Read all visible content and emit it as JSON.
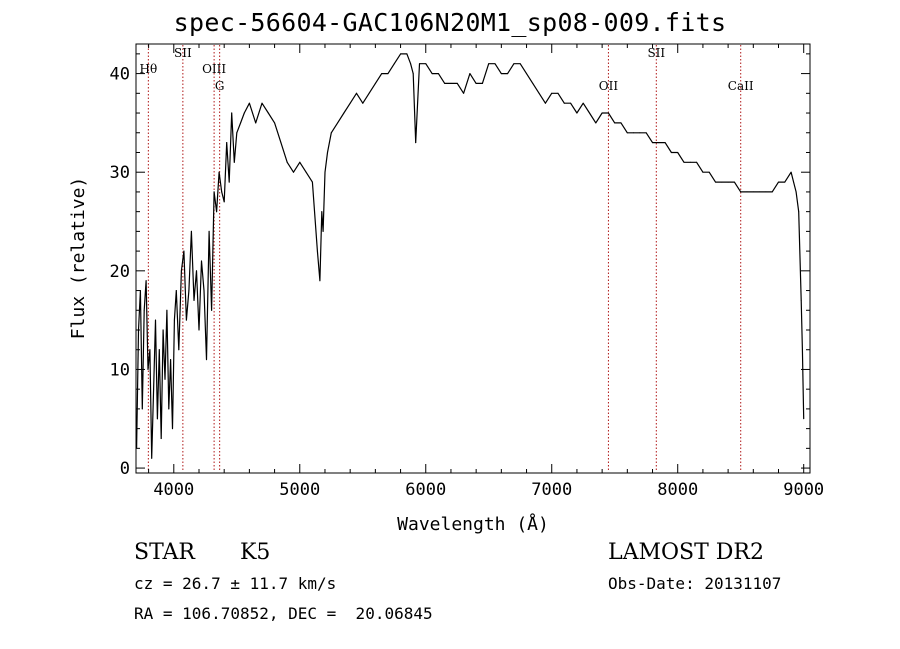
{
  "title": "spec-56604-GAC106N20M1_sp08-009.fits",
  "chart_data": {
    "type": "line",
    "xlabel": "Wavelength (Å)",
    "ylabel": "Flux (relative)",
    "xlim": [
      3700,
      9050
    ],
    "ylim": [
      -0.5,
      43
    ],
    "xticks": [
      4000,
      5000,
      6000,
      7000,
      8000,
      9000
    ],
    "yticks": [
      0,
      10,
      20,
      30,
      40
    ],
    "grid": false,
    "lines": [
      {
        "label": "Hθ",
        "x": 3798
      },
      {
        "label": "SII",
        "x": 4072
      },
      {
        "label": "OIII",
        "x": 4320
      },
      {
        "label": "G",
        "x": 4364
      },
      {
        "label": "OII",
        "x": 7450
      },
      {
        "label": "SII",
        "x": 7830
      },
      {
        "label": "CaII",
        "x": 8500
      }
    ],
    "series": [
      {
        "x": [
          3705,
          3720,
          3735,
          3750,
          3765,
          3780,
          3795,
          3810,
          3825,
          3840,
          3855,
          3870,
          3885,
          3900,
          3915,
          3930,
          3945,
          3960,
          3975,
          3990,
          4005,
          4020,
          4040,
          4060,
          4080,
          4100,
          4120,
          4140,
          4160,
          4180,
          4200,
          4220,
          4240,
          4260,
          4280,
          4300,
          4320,
          4340,
          4360,
          4380,
          4400,
          4420,
          4440,
          4460,
          4480,
          4500,
          4530,
          4560,
          4600,
          4650,
          4700,
          4750,
          4800,
          4850,
          4900,
          4950,
          5000,
          5050,
          5100,
          5140,
          5160,
          5175,
          5185,
          5200,
          5220,
          5250,
          5300,
          5350,
          5400,
          5450,
          5500,
          5550,
          5600,
          5650,
          5700,
          5750,
          5800,
          5850,
          5880,
          5900,
          5920,
          5950,
          6000,
          6050,
          6100,
          6150,
          6200,
          6250,
          6300,
          6350,
          6400,
          6450,
          6500,
          6550,
          6600,
          6650,
          6700,
          6750,
          6800,
          6850,
          6900,
          6950,
          7000,
          7050,
          7100,
          7150,
          7200,
          7250,
          7300,
          7350,
          7400,
          7450,
          7500,
          7550,
          7600,
          7650,
          7700,
          7750,
          7800,
          7850,
          7900,
          7950,
          8000,
          8050,
          8100,
          8150,
          8200,
          8250,
          8300,
          8350,
          8400,
          8450,
          8500,
          8550,
          8600,
          8650,
          8700,
          8750,
          8800,
          8850,
          8900,
          8920,
          8940,
          8960,
          8980,
          8990,
          9000
        ],
        "values": [
          2,
          14,
          18,
          6,
          16,
          19,
          10,
          12,
          1,
          8,
          15,
          5,
          12,
          3,
          14,
          9,
          16,
          6,
          11,
          4,
          15,
          18,
          12,
          20,
          22,
          15,
          18,
          24,
          17,
          20,
          14,
          21,
          18,
          11,
          24,
          16,
          28,
          26,
          30,
          28,
          27,
          33,
          29,
          36,
          31,
          34,
          35,
          36,
          37,
          35,
          37,
          36,
          35,
          33,
          31,
          30,
          31,
          30,
          29,
          22,
          19,
          26,
          24,
          30,
          32,
          34,
          35,
          36,
          37,
          38,
          37,
          38,
          39,
          40,
          40,
          41,
          42,
          42,
          41,
          40,
          33,
          41,
          41,
          40,
          40,
          39,
          39,
          39,
          38,
          40,
          39,
          39,
          41,
          41,
          40,
          40,
          41,
          41,
          40,
          39,
          38,
          37,
          38,
          38,
          37,
          37,
          36,
          37,
          36,
          35,
          36,
          36,
          35,
          35,
          34,
          34,
          34,
          34,
          33,
          33,
          33,
          32,
          32,
          31,
          31,
          31,
          30,
          30,
          29,
          29,
          29,
          29,
          28,
          28,
          28,
          28,
          28,
          28,
          29,
          29,
          30,
          29,
          28,
          26,
          17,
          12,
          5
        ]
      }
    ]
  },
  "info": {
    "class": "STAR",
    "subclass": "K5",
    "survey": "LAMOST DR2",
    "cz": "cz = 26.7 ± 11.7 km/s",
    "obsdate": "Obs-Date: 20131107",
    "radec": "RA = 106.70852, DEC =  20.06845"
  }
}
